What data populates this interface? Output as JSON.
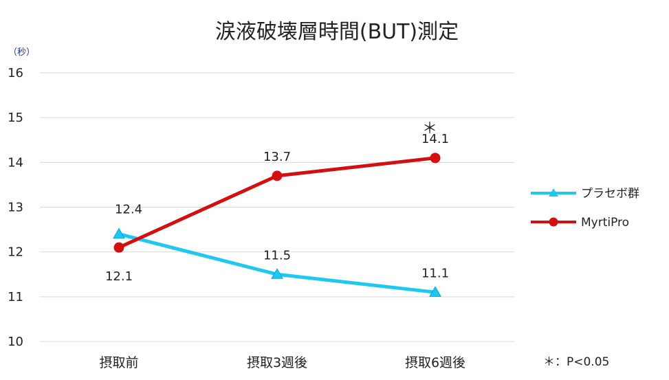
{
  "chart_data": {
    "type": "line",
    "title": "涙液破壊層時間(BUT)測定",
    "ylabel": "（秒）",
    "xlabel": "",
    "categories": [
      "摂取前",
      "摂取3週後",
      "摂取6週後"
    ],
    "ylim": [
      10,
      16
    ],
    "yticks": [
      "10",
      "11",
      "12",
      "13",
      "14",
      "15",
      "16"
    ],
    "grid": true,
    "legend_position": "right",
    "series": [
      {
        "name": "プラセボ群",
        "values": [
          12.4,
          11.5,
          11.1
        ],
        "labels": [
          "12.4",
          "11.5",
          "11.1"
        ],
        "color": "#1ec8f0",
        "marker": "triangle"
      },
      {
        "name": "MyrtiPro",
        "values": [
          12.1,
          13.7,
          14.1
        ],
        "labels": [
          "12.1",
          "13.7",
          "14.1"
        ],
        "color": "#d40f0f",
        "marker": "circle"
      }
    ],
    "annotations": {
      "significance_marker": "＊",
      "significance_note": "＊：P<0.05"
    }
  }
}
